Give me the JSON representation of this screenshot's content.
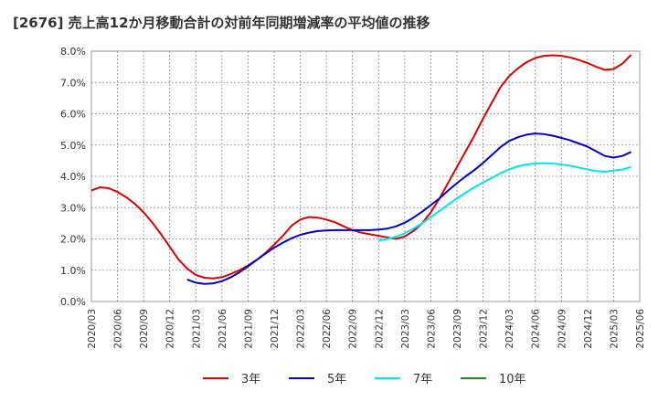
{
  "title": "[2676]  売上高12か月移動合計の対前年同期増減率の平均値の推移",
  "chart_data": {
    "type": "line",
    "ylim": [
      0,
      8
    ],
    "ytick_labels": [
      "0.0%",
      "1.0%",
      "2.0%",
      "3.0%",
      "4.0%",
      "5.0%",
      "6.0%",
      "7.0%",
      "8.0%"
    ],
    "xtick_labels": [
      "2020/03",
      "2020/06",
      "2020/09",
      "2020/12",
      "2021/03",
      "2021/06",
      "2021/09",
      "2021/12",
      "2022/03",
      "2022/06",
      "2022/09",
      "2022/12",
      "2023/03",
      "2023/06",
      "2023/09",
      "2023/12",
      "2024/03",
      "2024/06",
      "2024/09",
      "2024/12",
      "2025/03",
      "2025/06"
    ],
    "x_start": "2020/03",
    "grid": true,
    "legend_position": "bottom",
    "series": [
      {
        "name": "3年",
        "color": "#dd0000",
        "points": [
          [
            "2020/03",
            3.55
          ],
          [
            "2020/04",
            3.65
          ],
          [
            "2020/05",
            3.62
          ],
          [
            "2020/06",
            3.5
          ],
          [
            "2020/07",
            3.33
          ],
          [
            "2020/08",
            3.12
          ],
          [
            "2020/09",
            2.85
          ],
          [
            "2020/10",
            2.52
          ],
          [
            "2020/11",
            2.15
          ],
          [
            "2020/12",
            1.75
          ],
          [
            "2021/01",
            1.35
          ],
          [
            "2021/02",
            1.05
          ],
          [
            "2021/03",
            0.85
          ],
          [
            "2021/04",
            0.76
          ],
          [
            "2021/05",
            0.74
          ],
          [
            "2021/06",
            0.78
          ],
          [
            "2021/07",
            0.88
          ],
          [
            "2021/08",
            1.0
          ],
          [
            "2021/09",
            1.15
          ],
          [
            "2021/10",
            1.33
          ],
          [
            "2021/11",
            1.55
          ],
          [
            "2021/12",
            1.82
          ],
          [
            "2022/01",
            2.1
          ],
          [
            "2022/02",
            2.42
          ],
          [
            "2022/03",
            2.62
          ],
          [
            "2022/04",
            2.7
          ],
          [
            "2022/05",
            2.68
          ],
          [
            "2022/06",
            2.62
          ],
          [
            "2022/07",
            2.53
          ],
          [
            "2022/08",
            2.4
          ],
          [
            "2022/09",
            2.28
          ],
          [
            "2022/10",
            2.2
          ],
          [
            "2022/11",
            2.15
          ],
          [
            "2022/12",
            2.1
          ],
          [
            "2023/01",
            2.05
          ],
          [
            "2023/02",
            2.0
          ],
          [
            "2023/03",
            2.08
          ],
          [
            "2023/04",
            2.25
          ],
          [
            "2023/05",
            2.5
          ],
          [
            "2023/06",
            2.85
          ],
          [
            "2023/07",
            3.3
          ],
          [
            "2023/08",
            3.8
          ],
          [
            "2023/09",
            4.3
          ],
          [
            "2023/10",
            4.8
          ],
          [
            "2023/11",
            5.3
          ],
          [
            "2023/12",
            5.85
          ],
          [
            "2024/01",
            6.35
          ],
          [
            "2024/02",
            6.85
          ],
          [
            "2024/03",
            7.2
          ],
          [
            "2024/04",
            7.45
          ],
          [
            "2024/05",
            7.65
          ],
          [
            "2024/06",
            7.78
          ],
          [
            "2024/07",
            7.85
          ],
          [
            "2024/08",
            7.87
          ],
          [
            "2024/09",
            7.85
          ],
          [
            "2024/10",
            7.8
          ],
          [
            "2024/11",
            7.72
          ],
          [
            "2024/12",
            7.62
          ],
          [
            "2025/01",
            7.5
          ],
          [
            "2025/02",
            7.4
          ],
          [
            "2025/03",
            7.43
          ],
          [
            "2025/04",
            7.6
          ],
          [
            "2025/05",
            7.88
          ]
        ]
      },
      {
        "name": "5年",
        "color": "#0000cc",
        "points": [
          [
            "2021/02",
            0.7
          ],
          [
            "2021/03",
            0.6
          ],
          [
            "2021/04",
            0.56
          ],
          [
            "2021/05",
            0.58
          ],
          [
            "2021/06",
            0.65
          ],
          [
            "2021/07",
            0.77
          ],
          [
            "2021/08",
            0.93
          ],
          [
            "2021/09",
            1.12
          ],
          [
            "2021/10",
            1.33
          ],
          [
            "2021/11",
            1.53
          ],
          [
            "2021/12",
            1.72
          ],
          [
            "2022/01",
            1.88
          ],
          [
            "2022/02",
            2.02
          ],
          [
            "2022/03",
            2.13
          ],
          [
            "2022/04",
            2.2
          ],
          [
            "2022/05",
            2.25
          ],
          [
            "2022/06",
            2.27
          ],
          [
            "2022/07",
            2.28
          ],
          [
            "2022/08",
            2.28
          ],
          [
            "2022/09",
            2.28
          ],
          [
            "2022/10",
            2.28
          ],
          [
            "2022/11",
            2.28
          ],
          [
            "2022/12",
            2.3
          ],
          [
            "2023/01",
            2.33
          ],
          [
            "2023/02",
            2.4
          ],
          [
            "2023/03",
            2.52
          ],
          [
            "2023/04",
            2.68
          ],
          [
            "2023/05",
            2.87
          ],
          [
            "2023/06",
            3.08
          ],
          [
            "2023/07",
            3.3
          ],
          [
            "2023/08",
            3.55
          ],
          [
            "2023/09",
            3.78
          ],
          [
            "2023/10",
            4.0
          ],
          [
            "2023/11",
            4.2
          ],
          [
            "2023/12",
            4.43
          ],
          [
            "2024/01",
            4.68
          ],
          [
            "2024/02",
            4.93
          ],
          [
            "2024/03",
            5.13
          ],
          [
            "2024/04",
            5.25
          ],
          [
            "2024/05",
            5.33
          ],
          [
            "2024/06",
            5.37
          ],
          [
            "2024/07",
            5.35
          ],
          [
            "2024/08",
            5.3
          ],
          [
            "2024/09",
            5.23
          ],
          [
            "2024/10",
            5.15
          ],
          [
            "2024/11",
            5.05
          ],
          [
            "2024/12",
            4.95
          ],
          [
            "2025/01",
            4.8
          ],
          [
            "2025/02",
            4.65
          ],
          [
            "2025/03",
            4.6
          ],
          [
            "2025/04",
            4.65
          ],
          [
            "2025/05",
            4.78
          ]
        ]
      },
      {
        "name": "7年",
        "color": "#00e5ee",
        "points": [
          [
            "2022/12",
            1.95
          ],
          [
            "2023/01",
            2.0
          ],
          [
            "2023/02",
            2.07
          ],
          [
            "2023/03",
            2.18
          ],
          [
            "2023/04",
            2.33
          ],
          [
            "2023/05",
            2.5
          ],
          [
            "2023/06",
            2.7
          ],
          [
            "2023/07",
            2.9
          ],
          [
            "2023/08",
            3.1
          ],
          [
            "2023/09",
            3.3
          ],
          [
            "2023/10",
            3.48
          ],
          [
            "2023/11",
            3.65
          ],
          [
            "2023/12",
            3.8
          ],
          [
            "2024/01",
            3.95
          ],
          [
            "2024/02",
            4.1
          ],
          [
            "2024/03",
            4.22
          ],
          [
            "2024/04",
            4.32
          ],
          [
            "2024/05",
            4.38
          ],
          [
            "2024/06",
            4.41
          ],
          [
            "2024/07",
            4.42
          ],
          [
            "2024/08",
            4.41
          ],
          [
            "2024/09",
            4.38
          ],
          [
            "2024/10",
            4.34
          ],
          [
            "2024/11",
            4.28
          ],
          [
            "2024/12",
            4.22
          ],
          [
            "2025/01",
            4.17
          ],
          [
            "2025/02",
            4.15
          ],
          [
            "2025/03",
            4.18
          ],
          [
            "2025/04",
            4.22
          ],
          [
            "2025/05",
            4.3
          ]
        ]
      },
      {
        "name": "10年",
        "color": "#228822",
        "points": []
      }
    ]
  }
}
